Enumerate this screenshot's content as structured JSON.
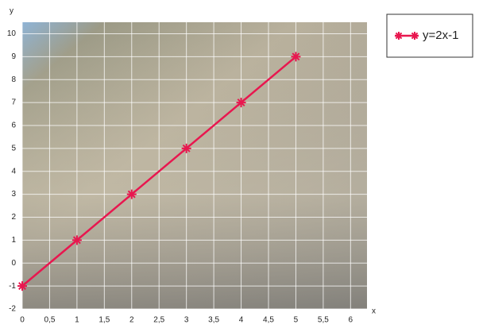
{
  "chart_data": {
    "type": "line",
    "x_label": "x",
    "y_label": "y",
    "x": [
      0,
      1,
      2,
      3,
      4,
      5
    ],
    "series": [
      {
        "name": "y=2x-1",
        "color": "#e8174f",
        "values": [
          -1,
          1,
          3,
          5,
          7,
          9
        ]
      }
    ],
    "xlim": [
      0,
      6.3
    ],
    "ylim": [
      -2,
      10.5
    ],
    "xticks": [
      0,
      {
        "value": 0.5,
        "label": "0,5"
      },
      1,
      {
        "value": 1.5,
        "label": "1,5"
      },
      2,
      {
        "value": 2.5,
        "label": "2,5"
      },
      3,
      {
        "value": 3.5,
        "label": "3,5"
      },
      4,
      {
        "value": 4.5,
        "label": "4,5"
      },
      5,
      {
        "value": 5.5,
        "label": "5,5"
      },
      6
    ],
    "yticks": [
      -2,
      -1,
      0,
      1,
      2,
      3,
      4,
      5,
      6,
      7,
      8,
      9,
      10
    ],
    "grid": true,
    "legend": "top-right"
  }
}
